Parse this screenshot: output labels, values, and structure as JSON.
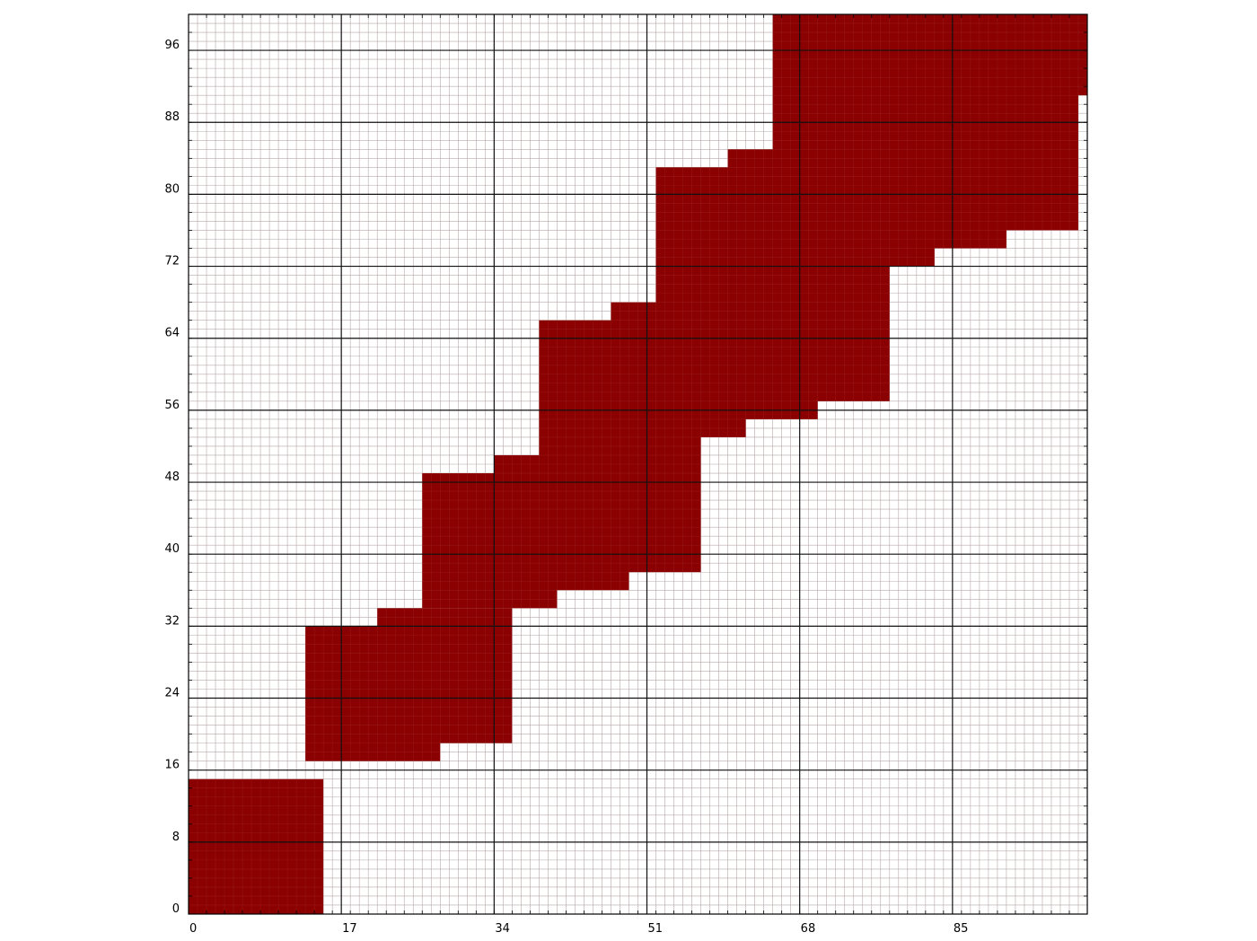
{
  "chart_data": {
    "type": "heatmap",
    "title": "",
    "xlabel": "",
    "ylabel": "",
    "xlim": [
      0,
      100
    ],
    "ylim": [
      0,
      100
    ],
    "x_ticks": [
      "0",
      "17",
      "34",
      "51",
      "68",
      "85"
    ],
    "y_ticks": [
      "0",
      "8",
      "16",
      "24",
      "32",
      "40",
      "48",
      "56",
      "64",
      "72",
      "80",
      "88",
      "96"
    ],
    "x_tick_values": [
      0,
      17,
      34,
      51,
      68,
      85
    ],
    "y_tick_values": [
      0,
      8,
      16,
      24,
      32,
      40,
      48,
      56,
      64,
      72,
      80,
      88,
      96
    ],
    "grid": true,
    "minor_grid_step": 1,
    "fill_color": "#8b0000",
    "filled_regions": [
      {
        "x0": 0,
        "x1": 15,
        "y0": 0,
        "y1": 15
      },
      {
        "x0": 13,
        "x1": 28,
        "y0": 17,
        "y1": 32
      },
      {
        "x0": 21,
        "x1": 36,
        "y0": 19,
        "y1": 34
      },
      {
        "x0": 26,
        "x1": 41,
        "y0": 34,
        "y1": 49
      },
      {
        "x0": 34,
        "x1": 49,
        "y0": 36,
        "y1": 51
      },
      {
        "x0": 39,
        "x1": 57,
        "y0": 38,
        "y1": 66
      },
      {
        "x0": 47,
        "x1": 62,
        "y0": 53,
        "y1": 68
      },
      {
        "x0": 52,
        "x1": 70,
        "y0": 55,
        "y1": 83
      },
      {
        "x0": 60,
        "x1": 78,
        "y0": 57,
        "y1": 85
      },
      {
        "x0": 65,
        "x1": 83,
        "y0": 72,
        "y1": 100
      },
      {
        "x0": 73,
        "x1": 91,
        "y0": 74,
        "y1": 100
      },
      {
        "x0": 81,
        "x1": 99,
        "y0": 76,
        "y1": 100
      },
      {
        "x0": 99,
        "x1": 100,
        "y0": 91,
        "y1": 100
      }
    ]
  }
}
